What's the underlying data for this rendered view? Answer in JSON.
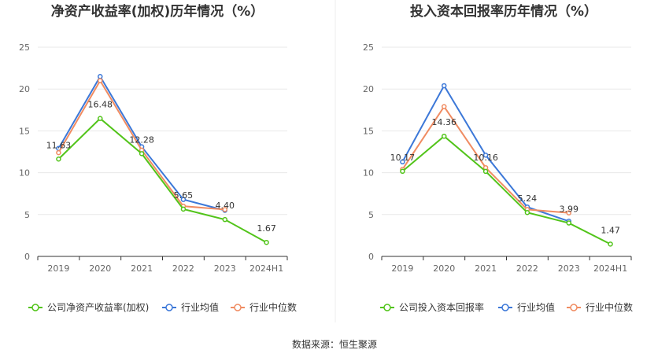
{
  "colors": {
    "company": "#52c41a",
    "industry_avg": "#3c78d8",
    "industry_median": "#f08c62",
    "grid": "#e8e8e8",
    "axis": "#333333"
  },
  "source": "数据来源：恒生聚源",
  "chart_data": [
    {
      "type": "line",
      "title": "净资产收益率(加权)历年情况（%）",
      "categories": [
        "2019",
        "2020",
        "2021",
        "2022",
        "2023",
        "2024H1"
      ],
      "ylim": [
        0,
        25
      ],
      "yticks": [
        "0",
        "5",
        "10",
        "15",
        "20",
        "25"
      ],
      "grid": true,
      "legend": "bottom",
      "series": [
        {
          "name": "公司净资产收益率(加权)",
          "color": "#52c41a",
          "values": [
            11.63,
            16.48,
            12.28,
            5.65,
            4.4,
            1.67
          ],
          "labels": [
            "11.63",
            "16.48",
            "12.28",
            "5.65",
            "4.40",
            "1.67"
          ]
        },
        {
          "name": "行业均值",
          "color": "#3c78d8",
          "values": [
            12.9,
            21.5,
            13.1,
            6.8,
            5.5,
            null
          ]
        },
        {
          "name": "行业中位数",
          "color": "#f08c62",
          "values": [
            12.4,
            21.0,
            12.7,
            6.0,
            5.6,
            null
          ]
        }
      ]
    },
    {
      "type": "line",
      "title": "投入资本回报率历年情况（%）",
      "categories": [
        "2019",
        "2020",
        "2021",
        "2022",
        "2023",
        "2024H1"
      ],
      "ylim": [
        0,
        25
      ],
      "yticks": [
        "0",
        "5",
        "10",
        "15",
        "20",
        "25"
      ],
      "grid": true,
      "legend": "bottom",
      "series": [
        {
          "name": "公司投入资本回报率",
          "color": "#52c41a",
          "values": [
            10.17,
            14.36,
            10.16,
            5.24,
            3.99,
            1.47
          ],
          "labels": [
            "10.17",
            "14.36",
            "10.16",
            "5.24",
            "3.99",
            "1.47"
          ]
        },
        {
          "name": "行业均值",
          "color": "#3c78d8",
          "values": [
            11.3,
            20.4,
            12.1,
            5.9,
            4.2,
            null
          ]
        },
        {
          "name": "行业中位数",
          "color": "#f08c62",
          "values": [
            10.4,
            17.9,
            10.6,
            5.6,
            5.2,
            null
          ]
        }
      ]
    }
  ]
}
